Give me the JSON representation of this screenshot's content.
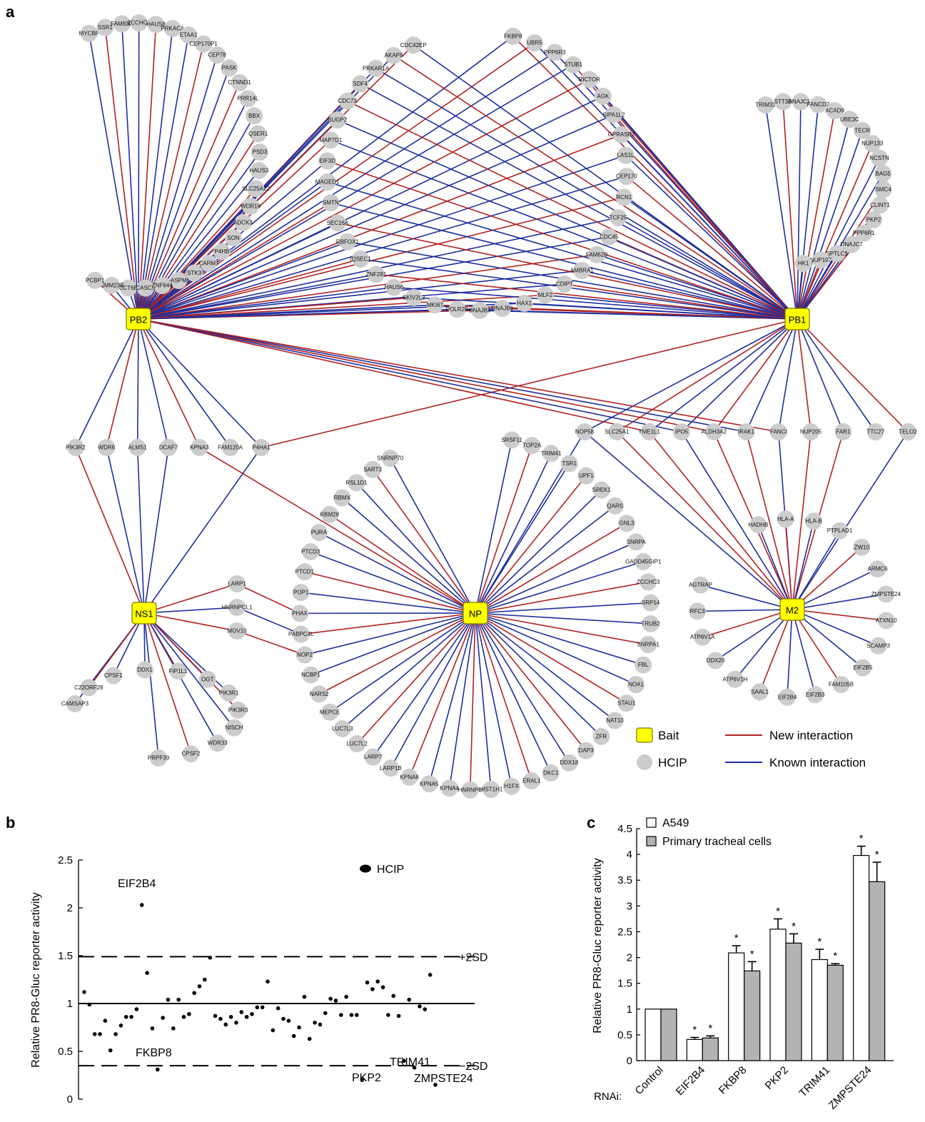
{
  "colors": {
    "new": "#b22222",
    "known": "#1f2f9e",
    "bait": "#ffff00",
    "hcip": "#cccccc"
  },
  "panel_labels": [
    "a",
    "b",
    "c"
  ],
  "network": {
    "baits": [
      "PB2",
      "PB1",
      "NS1",
      "NP",
      "M2"
    ],
    "clusters": {
      "pb2": [
        "MYCBP",
        "SSR1",
        "FAM83D",
        "ZCCHC8",
        "HAUS8",
        "PRKACA",
        "ETAA1",
        "CEP170P1",
        "CEP78",
        "PASK",
        "CTNND1",
        "PRR14L",
        "BBX",
        "QSER1",
        "PSD3",
        "HAUS3",
        "SLC25A22",
        "WDR18",
        "ADCK3",
        "SON",
        "P4HB",
        "CARM1",
        "STK3",
        "ASPM",
        "ZNF644",
        "CASC5",
        "CCT6B",
        "TIMM23B",
        "PCBP1"
      ],
      "shared": [
        "FKBP8",
        "UBR5",
        "PPP6R3",
        "STUB1",
        "RICTOR",
        "AGK",
        "SIPA1L2",
        "GPRASP2",
        "LAS1L",
        "CEP170",
        "RCN1",
        "TCF25",
        "CDC45",
        "FAM62B",
        "AMBRA1",
        "CDIPT",
        "MLF2",
        "HAX1",
        "DNAJB6",
        "DNAJB3",
        "POLR2B",
        "MKI67",
        "SKIV2L2",
        "HAUS6",
        "ZNF281",
        "IQSEC1",
        "RBFOX1",
        "SEC16A",
        "SMTN",
        "MAGED1",
        "EIF3D",
        "MAP7D1",
        "SUGP2",
        "CDC73",
        "SDF4",
        "PRKAR1A",
        "AKAP8",
        "CDC42EP"
      ],
      "pb1": [
        "TRIM32",
        "STT3A",
        "DNAJC16",
        "FANCD2",
        "ACAD9",
        "UBE3C",
        "TECR",
        "NUP133",
        "NCSTN",
        "BAG5",
        "SMC4",
        "CLINT1",
        "PKP2",
        "PPP6R1",
        "DNAJC7",
        "SPTLC1",
        "NUP107",
        "HK1"
      ],
      "row": [
        "PIK3R2",
        "WDR6",
        "ALMS1",
        "DCAF7",
        "KPNA3",
        "FAM120A",
        "P4HA1"
      ],
      "pb1row": [
        "NOP58",
        "SLC25A1",
        "YME1L1",
        "IPO5",
        "ALDH3A2",
        "IRAK1",
        "FANCI",
        "NUP205",
        "FAR1",
        "TTC27",
        "TELO2"
      ],
      "np": [
        "SRSF11",
        "TOP2A",
        "TRIM41",
        "TSR1",
        "UPF1",
        "SREK1",
        "QARS",
        "GNL3",
        "SNRPA",
        "GADD45GIP1",
        "ZCCHC3",
        "SRP14",
        "TRUB2",
        "SNRPA1",
        "FBL",
        "NOA1",
        "STAU1",
        "NAT10",
        "ZFR",
        "DAP3",
        "DDX18",
        "DKC1",
        "ERAL1",
        "H1FX",
        "HIST1H1",
        "HNRNPU",
        "KPNA4",
        "KPNA5",
        "KPNA6",
        "LARP1B",
        "LARP7",
        "LUC7L2",
        "LUC7L3",
        "MEPCE",
        "NARS2",
        "NCBP1",
        "NOP2",
        "PABPC4L",
        "PHAX",
        "POP1",
        "PTCD1",
        "PTCD3",
        "PURA",
        "RBM28",
        "RBMX",
        "RSL1D1",
        "SART3",
        "SNRNP70"
      ],
      "ns1_side": [
        "LARP1",
        "HNRNPCL1",
        "MOV10"
      ],
      "ns1": [
        "CAMSAP3",
        "C22ORF28",
        "CPSF1",
        "DDX1",
        "FIP1L1",
        "OGT",
        "PIK3R1",
        "PIK3R3",
        "NISCH",
        "WDR33",
        "CPSF2",
        "PRPF39"
      ],
      "m2": [
        "HADHB",
        "HLA-A",
        "HLA-B",
        "PTPLAD1",
        "ZW10",
        "ARMC6",
        "ZMPSTE24",
        "ATXN10",
        "SCAMP3",
        "EIF2B5",
        "FAM105B",
        "EIF2B3",
        "EIF2B4",
        "SAAL1",
        "ATP6V1H",
        "DDX20",
        "ATP6V1A",
        "RFC3",
        "AGTRAP"
      ]
    },
    "legend": {
      "bait": "Bait",
      "hcip": "HCIP",
      "new": "New interaction",
      "known": "Known interaction"
    }
  },
  "chart_data": [
    {
      "type": "scatter",
      "ylabel": "Relative PR8-Gluc reporter activity",
      "ylim": [
        0,
        2.5
      ],
      "yticks": [
        "0",
        "0.5",
        "1",
        "1.5",
        "2",
        "2.5"
      ],
      "reference_lines": [
        {
          "label": "+2SD",
          "value": 1.49
        },
        {
          "label": "−2SD",
          "value": 0.35
        }
      ],
      "baseline": 1.0,
      "legend": "HCIP",
      "annotations": [
        {
          "label": "EIF2B4",
          "x": 39,
          "y": 2.03
        },
        {
          "label": "FKBP8",
          "x": 46,
          "y": 0.31
        },
        {
          "label": "PKP2",
          "x": 224,
          "y": 0.2
        },
        {
          "label": "TRIM41",
          "x": 247,
          "y": 0.4
        },
        {
          "label": "ZMPSTE24",
          "x": 267,
          "y": 0.15
        }
      ],
      "values": [
        1.12,
        0.99,
        0.68,
        0.68,
        0.82,
        0.51,
        0.68,
        0.77,
        0.86,
        0.86,
        0.94,
        2.03,
        1.32,
        0.74,
        0.31,
        0.85,
        1.04,
        0.74,
        1.04,
        0.86,
        0.89,
        1.11,
        1.18,
        1.25,
        1.48,
        0.87,
        0.84,
        0.78,
        0.86,
        0.8,
        0.91,
        0.86,
        0.89,
        0.96,
        0.96,
        1.23,
        0.72,
        0.95,
        0.84,
        0.82,
        0.66,
        0.75,
        1.07,
        0.63,
        0.8,
        0.78,
        0.9,
        1.05,
        1.03,
        0.88,
        1.07,
        0.88,
        0.88,
        0.2,
        1.22,
        1.15,
        1.23,
        1.17,
        0.88,
        1.08,
        0.87,
        0.4,
        1.04,
        0.33,
        0.97,
        0.94,
        1.3,
        0.15
      ]
    },
    {
      "type": "bar",
      "ylabel": "Relative PR8-Gluc reporter activity",
      "xlabel": "RNAi:",
      "ylim": [
        0,
        4.5
      ],
      "yticks": [
        "0",
        "0.5",
        "1",
        "1.5",
        "2",
        "2.5",
        "3",
        "3.5",
        "4",
        "4.5"
      ],
      "categories": [
        "Control",
        "EIF2B4",
        "FKBP8",
        "PKP2",
        "TRIM41",
        "ZMPSTE24"
      ],
      "series": [
        {
          "name": "A549",
          "values": [
            1.0,
            0.41,
            2.09,
            2.55,
            1.96,
            3.98
          ],
          "errors": [
            0,
            0.04,
            0.14,
            0.2,
            0.2,
            0.18
          ],
          "sig": [
            false,
            true,
            true,
            true,
            true,
            true
          ]
        },
        {
          "name": "Primary tracheal cells",
          "values": [
            1.0,
            0.44,
            1.74,
            2.28,
            1.85,
            3.47
          ],
          "errors": [
            0,
            0.04,
            0.18,
            0.18,
            0.03,
            0.38
          ],
          "sig": [
            false,
            true,
            true,
            true,
            true,
            true
          ]
        }
      ],
      "sig_mark": "*"
    }
  ]
}
